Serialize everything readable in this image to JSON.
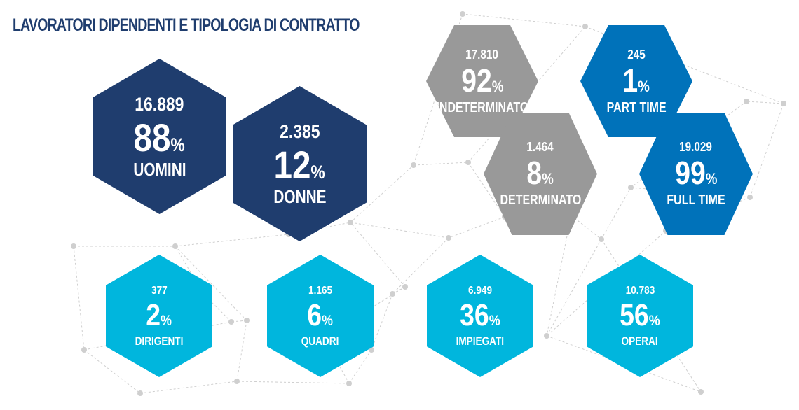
{
  "title": "LAVORATORI DIPENDENTI E TIPOLOGIA DI CONTRATTO",
  "percent_symbol": "%",
  "colors": {
    "navy": "#1f3d6e",
    "gray": "#999999",
    "blue": "#0072ba",
    "cyan": "#00b6dd",
    "network": "#cfcfcf"
  },
  "gender": {
    "uomini": {
      "count": "16.889",
      "percent": "88",
      "label": "UOMINI"
    },
    "donne": {
      "count": "2.385",
      "percent": "12",
      "label": "DONNE"
    }
  },
  "contract_type": {
    "indeterminato": {
      "count": "17.810",
      "percent": "92",
      "label": "INDETERMINATO"
    },
    "determinato": {
      "count": "1.464",
      "percent": "8",
      "label": "DETERMINATO"
    }
  },
  "work_time": {
    "part_time": {
      "count": "245",
      "percent": "1",
      "label": "PART TIME"
    },
    "full_time": {
      "count": "19.029",
      "percent": "99",
      "label": "FULL TIME"
    }
  },
  "category": {
    "dirigenti": {
      "count": "377",
      "percent": "2",
      "label": "DIRIGENTI"
    },
    "quadri": {
      "count": "1.165",
      "percent": "6",
      "label": "QUADRI"
    },
    "impiegati": {
      "count": "6.949",
      "percent": "36",
      "label": "IMPIEGATI"
    },
    "operai": {
      "count": "10.783",
      "percent": "56",
      "label": "OPERAI"
    }
  }
}
